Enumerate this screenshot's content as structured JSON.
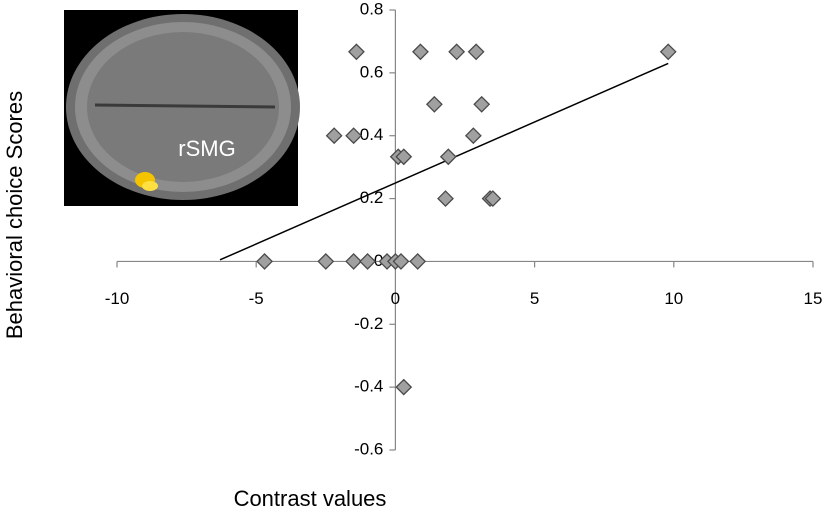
{
  "chart_data": {
    "type": "scatter",
    "xlabel": "Contrast values",
    "ylabel": "Behavioral choice Scores",
    "annotations": [
      "rSMG"
    ],
    "x": [
      -1.4,
      0.9,
      2.2,
      2.9,
      9.8,
      1.4,
      3.1,
      -2.2,
      -1.5,
      2.8,
      0.1,
      0.3,
      1.9,
      1.8,
      3.4,
      3.5,
      -4.7,
      -2.5,
      -1.5,
      -1.0,
      -0.3,
      0,
      0.2,
      0.8,
      0.3
    ],
    "values": [
      0.667,
      0.667,
      0.667,
      0.667,
      0.667,
      0.5,
      0.5,
      0.4,
      0.4,
      0.4,
      0.333,
      0.333,
      0.333,
      0.2,
      0.2,
      0.2,
      0,
      0,
      0,
      0,
      0,
      0,
      0,
      0,
      -0.4
    ],
    "color": "#a0a0a0",
    "trendline": {
      "x": [
        -6.3,
        9.8
      ],
      "y": [
        0.005,
        0.63
      ],
      "color": "#000000"
    },
    "xlim": [
      -10,
      15
    ],
    "xticks": [
      -10,
      -5,
      0,
      5,
      10,
      15
    ],
    "ylim": [
      -0.6,
      0.8
    ],
    "yticks": [
      -0.6,
      -0.4,
      -0.2,
      0,
      0.2,
      0.4,
      0.6,
      0.8
    ]
  }
}
